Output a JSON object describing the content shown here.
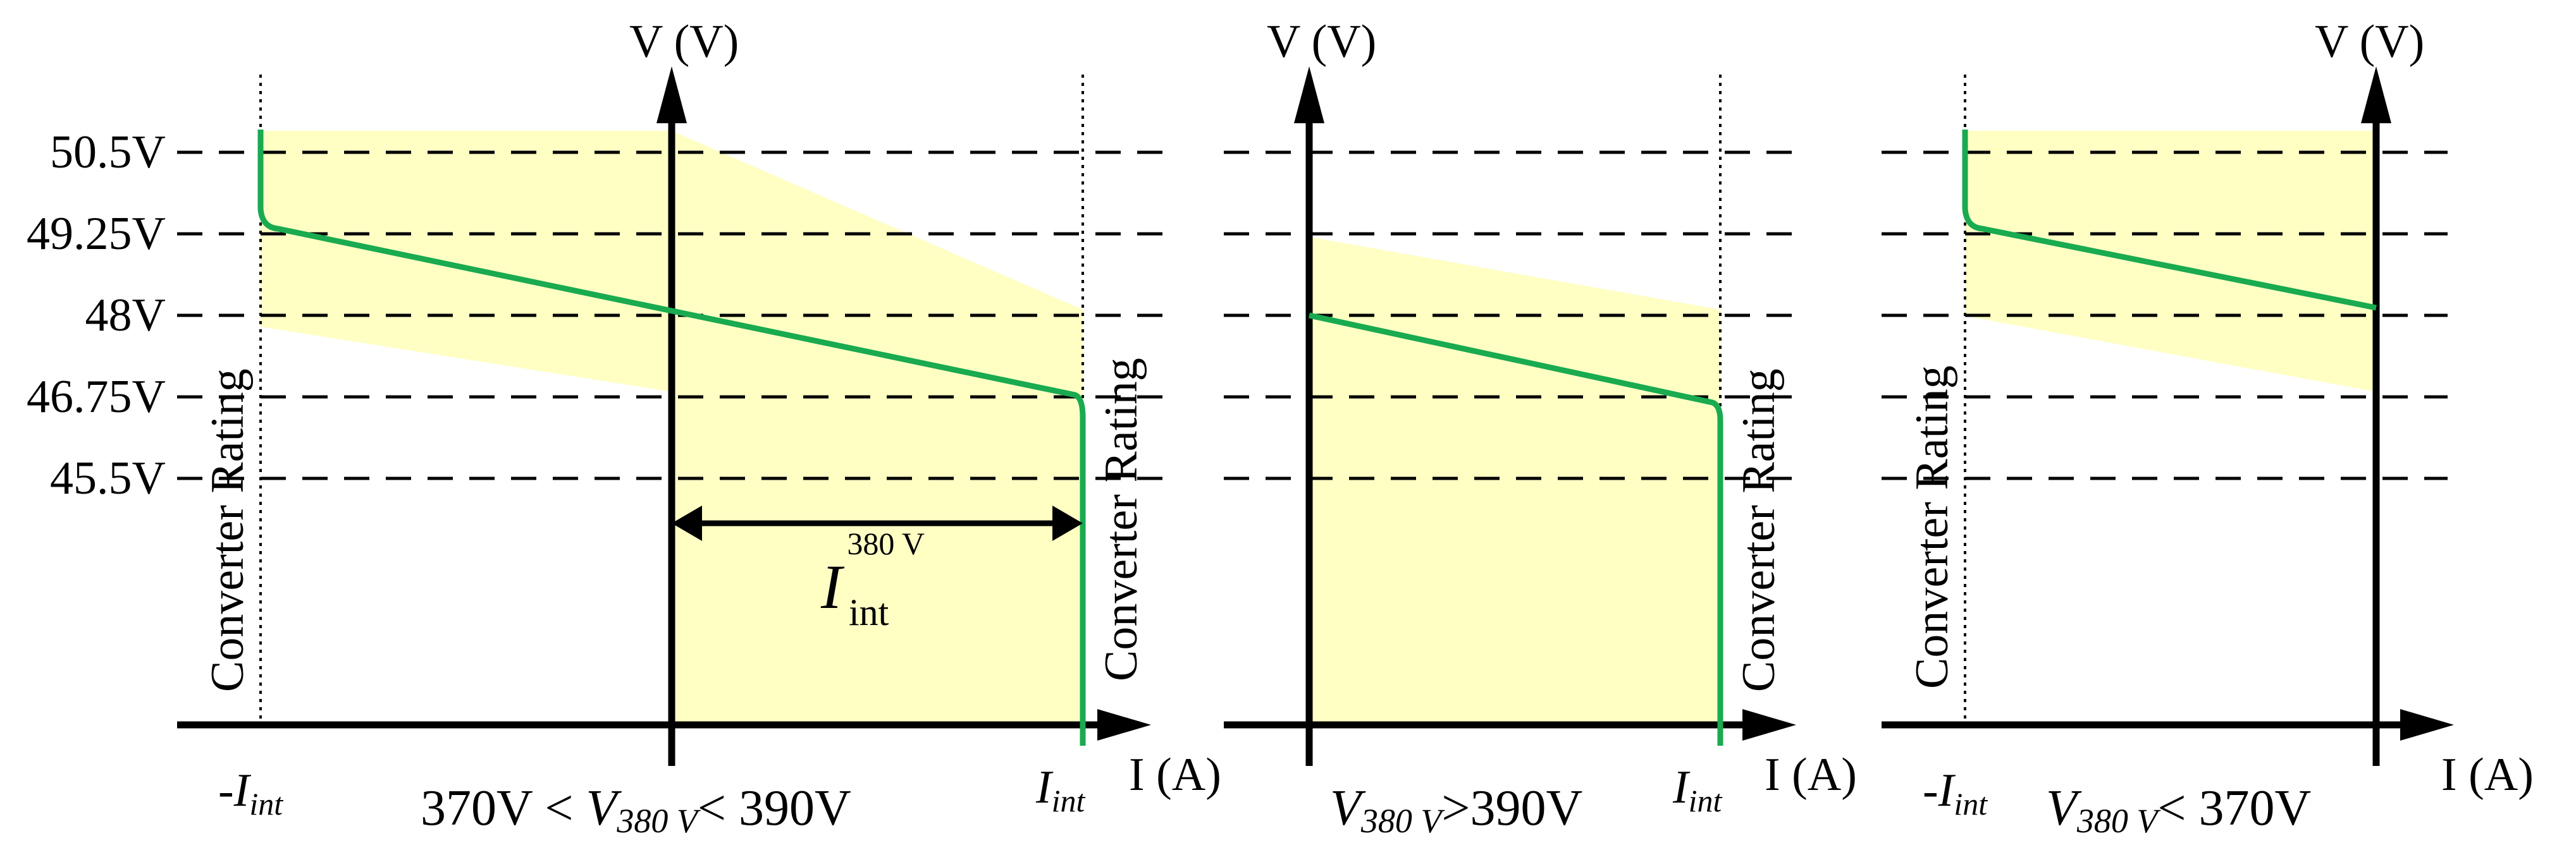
{
  "colors": {
    "band": "#ffffc4",
    "curve": "#1aaa4f",
    "axis": "#000000"
  },
  "axis": {
    "v_label": "V (V)",
    "i_label": "I (A)"
  },
  "levels": [
    {
      "value": 50.5,
      "label": "50.5V"
    },
    {
      "value": 49.25,
      "label": "49.25V"
    },
    {
      "value": 48,
      "label": "48V"
    },
    {
      "value": 46.75,
      "label": "46.75V"
    },
    {
      "value": 45.5,
      "label": "45.5V"
    }
  ],
  "rating_label": "Converter Rating",
  "current_limit": {
    "neg_prefix": "-",
    "symbol": "I",
    "subscript": "int"
  },
  "panels": [
    {
      "id": "mid",
      "condition": {
        "pre": "370V < ",
        "var": "V",
        "sub": "380 V",
        "post": "< 390V"
      },
      "droop_from_v": 49.25,
      "droop_to_v": 46.75,
      "interface_current": {
        "symbol": "I",
        "subscript": "int",
        "superscript": "380 V"
      }
    },
    {
      "id": "high",
      "condition": {
        "pre": "",
        "var": "V",
        "sub": "380 V",
        "post": ">390V"
      },
      "droop_from_v": 48,
      "droop_to_v": 46.75
    },
    {
      "id": "low",
      "condition": {
        "pre": "",
        "var": "V",
        "sub": "380 V",
        "post": "< 370V"
      },
      "droop_from_v": 49.25,
      "droop_to_v": 48
    }
  ]
}
